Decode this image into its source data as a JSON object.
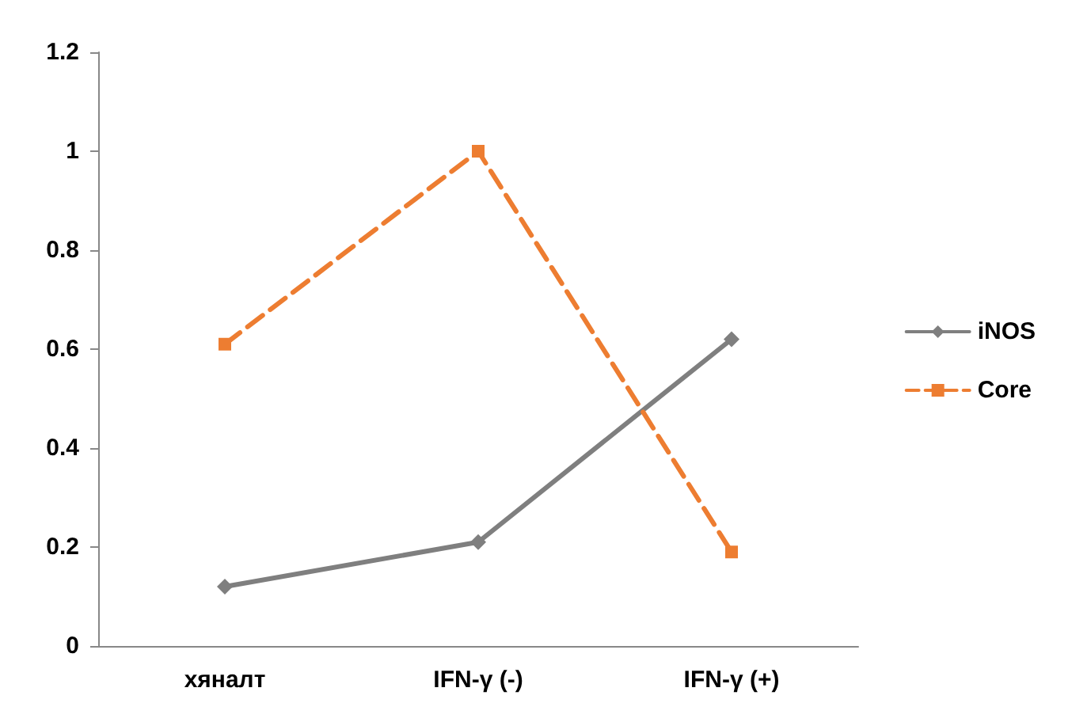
{
  "chart_data": {
    "type": "line",
    "categories": [
      "хяналт",
      "IFN-γ (-)",
      "IFN-γ (+)"
    ],
    "series": [
      {
        "name": "iNOS",
        "color": "#7f7f7f",
        "values": [
          0.12,
          0.21,
          0.62
        ],
        "marker": "diamond",
        "line_style": "solid"
      },
      {
        "name": "Core",
        "color": "#ed7d31",
        "values": [
          0.61,
          1.0,
          0.19
        ],
        "marker": "square",
        "line_style": "dashed"
      }
    ],
    "ylim": [
      0,
      1.2
    ],
    "yticks": [
      0,
      0.2,
      0.4,
      0.6,
      0.8,
      1,
      1.2
    ],
    "grid": false,
    "legend": "right"
  }
}
